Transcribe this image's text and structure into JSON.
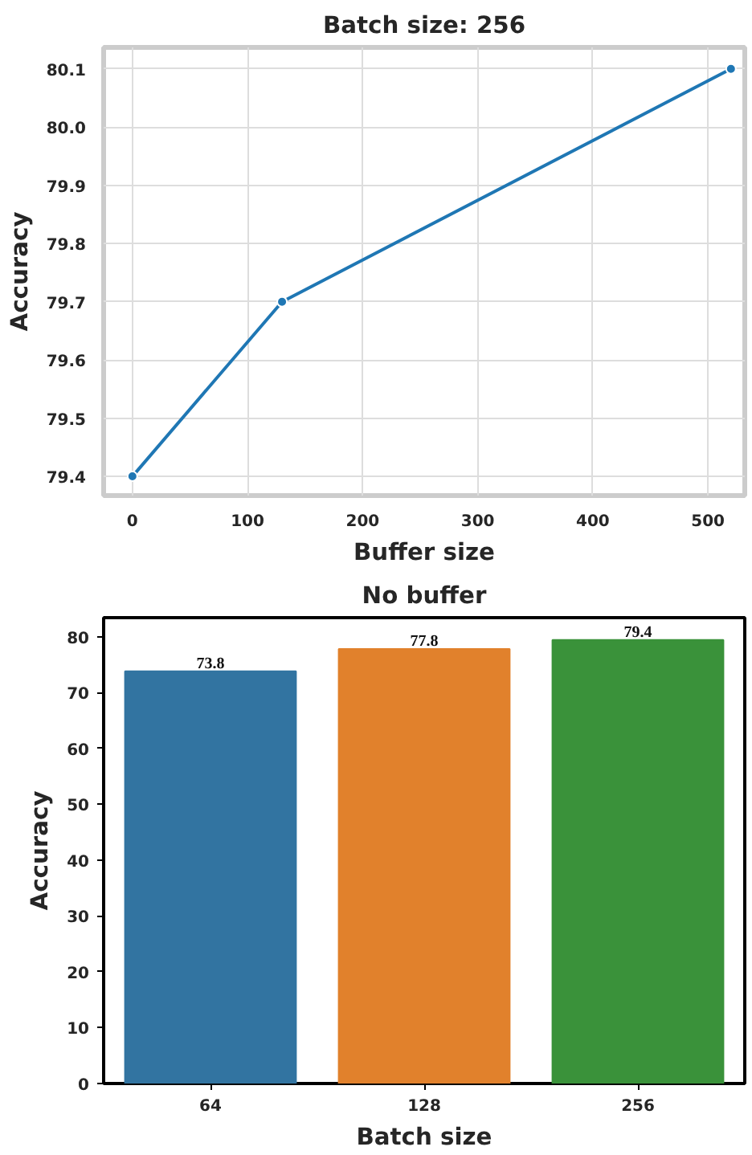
{
  "chart_data": [
    {
      "type": "line",
      "title": "Batch size: 256",
      "xlabel": "Buffer size",
      "ylabel": "Accuracy",
      "x": [
        0,
        130,
        520
      ],
      "values": [
        79.4,
        79.7,
        80.1
      ],
      "color": "#1f77b4",
      "marker": "circle",
      "grid": true,
      "xlim": [
        -25,
        532
      ],
      "ylim": [
        79.367,
        80.137
      ],
      "xticks": [
        0,
        100,
        200,
        300,
        400,
        500
      ],
      "yticks": [
        79.4,
        79.5,
        79.6,
        79.7,
        79.8,
        79.9,
        {
          "value": 80.0,
          "label": "80.0"
        },
        80.1
      ]
    },
    {
      "type": "bar",
      "title": "No buffer",
      "xlabel": "Batch size",
      "ylabel": "Accuracy",
      "categories": [
        "64",
        "128",
        "256"
      ],
      "values": [
        73.8,
        77.8,
        79.4
      ],
      "colors": [
        "#3274a1",
        "#e1812c",
        "#3a923a"
      ],
      "data_labels": true,
      "ylim": [
        0,
        83.4
      ],
      "yticks": [
        0,
        10,
        20,
        30,
        40,
        50,
        60,
        70,
        80
      ]
    }
  ]
}
